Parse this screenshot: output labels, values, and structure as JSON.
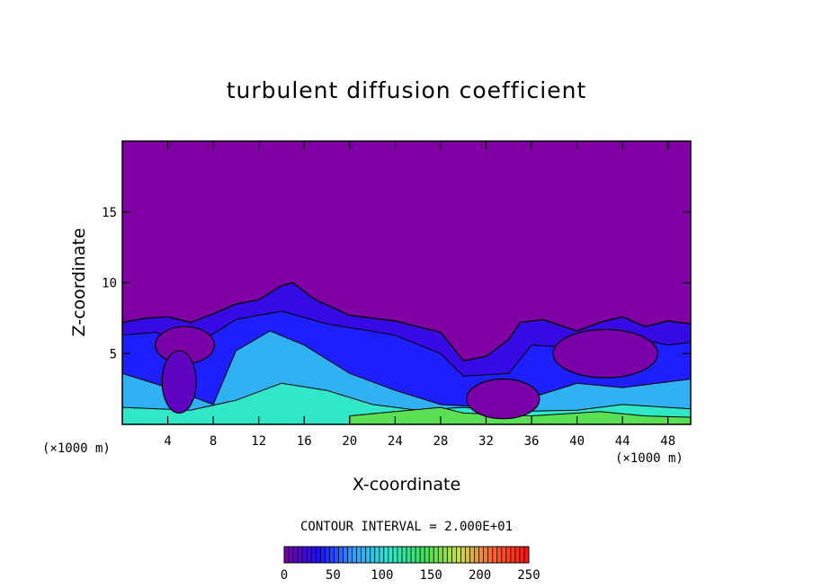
{
  "chart_data": {
    "type": "heatmap",
    "title": "turbulent diffusion coefficient",
    "xlabel": "X-coordinate",
    "ylabel": "Z-coordinate",
    "x_unit_left": "(×1000 m)",
    "x_unit_right": "(×1000 m)",
    "xlim": [
      0,
      50
    ],
    "ylim": [
      0,
      20
    ],
    "x_ticks": [
      4,
      8,
      12,
      16,
      20,
      24,
      28,
      32,
      36,
      40,
      44,
      48
    ],
    "y_ticks": [
      5,
      10,
      15
    ],
    "contour_interval_text": "CONTOUR INTERVAL = 2.000E+01",
    "colorbar": {
      "min": 0,
      "max": 250,
      "ticks": [
        0,
        50,
        100,
        150,
        200,
        250
      ],
      "colors": [
        "#7a00a8",
        "#1a0dff",
        "#2fa0ff",
        "#2fe8d0",
        "#3fe05a",
        "#c8e040",
        "#ff6030",
        "#ff1010"
      ]
    },
    "background_value_color": "#8000a6",
    "top_of_turbulent_layer": [
      [
        0,
        7.2
      ],
      [
        2,
        7.5
      ],
      [
        4,
        7.6
      ],
      [
        6,
        7.2
      ],
      [
        8,
        7.8
      ],
      [
        10,
        8.5
      ],
      [
        12,
        8.8
      ],
      [
        14,
        9.8
      ],
      [
        15,
        10.0
      ],
      [
        17,
        8.8
      ],
      [
        20,
        7.7
      ],
      [
        24,
        7.3
      ],
      [
        28,
        6.5
      ],
      [
        30,
        4.5
      ],
      [
        32,
        4.8
      ],
      [
        34,
        6.0
      ],
      [
        35,
        7.2
      ],
      [
        37,
        7.4
      ],
      [
        40,
        6.6
      ],
      [
        42,
        7.2
      ],
      [
        44,
        7.6
      ],
      [
        46,
        6.9
      ],
      [
        48,
        7.3
      ],
      [
        50,
        7.1
      ]
    ],
    "zones": [
      {
        "level": 40,
        "points": [
          [
            0,
            6.3
          ],
          [
            3,
            6.5
          ],
          [
            6,
            5.4
          ],
          [
            10,
            7.4
          ],
          [
            14,
            8.0
          ],
          [
            18,
            7.1
          ],
          [
            24,
            6.3
          ],
          [
            28,
            5.0
          ],
          [
            30,
            3.4
          ],
          [
            34,
            3.6
          ],
          [
            36,
            5.6
          ],
          [
            40,
            5.4
          ],
          [
            44,
            6.3
          ],
          [
            48,
            5.6
          ],
          [
            50,
            5.8
          ]
        ]
      },
      {
        "level": 80,
        "points": [
          [
            0,
            3.6
          ],
          [
            4,
            2.6
          ],
          [
            8,
            1.4
          ],
          [
            10,
            5.2
          ],
          [
            13,
            6.6
          ],
          [
            16,
            5.6
          ],
          [
            20,
            3.6
          ],
          [
            24,
            2.4
          ],
          [
            28,
            1.4
          ],
          [
            32,
            1.2
          ],
          [
            36,
            1.9
          ],
          [
            40,
            2.9
          ],
          [
            44,
            2.6
          ],
          [
            48,
            3.0
          ],
          [
            50,
            3.2
          ]
        ]
      },
      {
        "level": 110,
        "points": [
          [
            0,
            1.2
          ],
          [
            6,
            1.0
          ],
          [
            10,
            1.7
          ],
          [
            14,
            2.9
          ],
          [
            18,
            2.4
          ],
          [
            22,
            1.4
          ],
          [
            26,
            1.0
          ],
          [
            30,
            1.2
          ],
          [
            34,
            0.9
          ],
          [
            40,
            1.0
          ],
          [
            44,
            1.4
          ],
          [
            48,
            1.2
          ],
          [
            50,
            1.1
          ]
        ]
      },
      {
        "level": 150,
        "points": [
          [
            20,
            0.6
          ],
          [
            24,
            0.9
          ],
          [
            28,
            1.2
          ],
          [
            30,
            0.8
          ],
          [
            36,
            0.6
          ],
          [
            42,
            0.9
          ],
          [
            46,
            0.6
          ],
          [
            50,
            0.5
          ]
        ]
      }
    ],
    "vortices": [
      {
        "x": 5.5,
        "z": 5.6,
        "rx": 2.6,
        "rz": 1.3,
        "level": 0
      },
      {
        "x": 42.5,
        "z": 5.0,
        "rx": 4.6,
        "rz": 1.7,
        "level": 0
      },
      {
        "x": 33.5,
        "z": 1.8,
        "rx": 3.2,
        "rz": 1.4,
        "level": 0
      },
      {
        "x": 5.0,
        "z": 3.0,
        "rx": 1.5,
        "rz": 2.2,
        "level": 10
      }
    ]
  }
}
